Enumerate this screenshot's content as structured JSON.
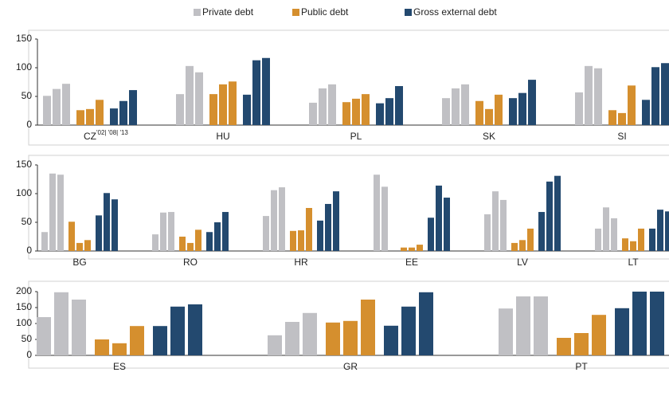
{
  "chart_data": [
    {
      "type": "bar",
      "categories": [
        "CZ",
        "HU",
        "PL",
        "SK",
        "SI"
      ],
      "annotation": "'02| '08| '13",
      "ylim": [
        0,
        150
      ],
      "yticks": [
        0,
        50,
        100,
        150
      ],
      "series": [
        {
          "name": "Private debt",
          "color": "#c0c0c4",
          "values": [
            [
              51,
              63,
              72
            ],
            [
              54,
              103,
              92
            ],
            [
              39,
              64,
              71
            ],
            [
              47,
              64,
              71
            ],
            [
              57,
              103,
              99
            ]
          ]
        },
        {
          "name": "Public debt",
          "color": "#d58f2e",
          "values": [
            [
              26,
              28,
              44
            ],
            [
              54,
              71,
              76
            ],
            [
              40,
              46,
              54
            ],
            [
              42,
              28,
              53
            ],
            [
              26,
              21,
              69
            ]
          ]
        },
        {
          "name": "Gross external debt",
          "color": "#23496f",
          "values": [
            [
              29,
              42,
              61
            ],
            [
              53,
              113,
              117
            ],
            [
              38,
              47,
              68
            ],
            [
              47,
              56,
              79
            ],
            [
              44,
              101,
              108
            ]
          ]
        }
      ]
    },
    {
      "type": "bar",
      "categories": [
        "BG",
        "RO",
        "HR",
        "EE",
        "LV",
        "LT"
      ],
      "ylim": [
        0,
        150
      ],
      "yticks": [
        0,
        50,
        100,
        150
      ],
      "series": [
        {
          "name": "Private debt",
          "color": "#c0c0c4",
          "values": [
            [
              33,
              135,
              133
            ],
            [
              29,
              67,
              68
            ],
            [
              61,
              106,
              111
            ],
            [
              133,
              112,
              null
            ],
            [
              64,
              104,
              89
            ],
            [
              39,
              76,
              57
            ]
          ]
        },
        {
          "name": "Public debt",
          "color": "#d58f2e",
          "values": [
            [
              51,
              14,
              19
            ],
            [
              25,
              14,
              37
            ],
            [
              35,
              36,
              75
            ],
            [
              6,
              6,
              11
            ],
            [
              14,
              19,
              39
            ],
            [
              22,
              17,
              39
            ]
          ]
        },
        {
          "name": "Gross external debt",
          "color": "#23496f",
          "values": [
            [
              62,
              101,
              90
            ],
            [
              33,
              50,
              68
            ],
            [
              53,
              82,
              104
            ],
            [
              58,
              114,
              93
            ],
            [
              68,
              121,
              131
            ],
            [
              39,
              72,
              69
            ]
          ]
        }
      ]
    },
    {
      "type": "bar",
      "categories": [
        "ES",
        "GR",
        "PT"
      ],
      "ylim": [
        0,
        200
      ],
      "yticks": [
        0,
        50,
        100,
        150,
        200
      ],
      "series": [
        {
          "name": "Private debt",
          "color": "#c0c0c4",
          "values": [
            [
              120,
              198,
              175
            ],
            [
              63,
              105,
              133
            ],
            [
              147,
              185,
              185
            ]
          ]
        },
        {
          "name": "Public debt",
          "color": "#d58f2e",
          "values": [
            [
              50,
              38,
              92
            ],
            [
              103,
              108,
              175
            ],
            [
              55,
              70,
              127
            ]
          ]
        },
        {
          "name": "Gross external debt",
          "color": "#23496f",
          "values": [
            [
              92,
              153,
              160
            ],
            [
              93,
              153,
              198
            ],
            [
              148,
              200,
              200
            ]
          ]
        }
      ]
    }
  ]
}
